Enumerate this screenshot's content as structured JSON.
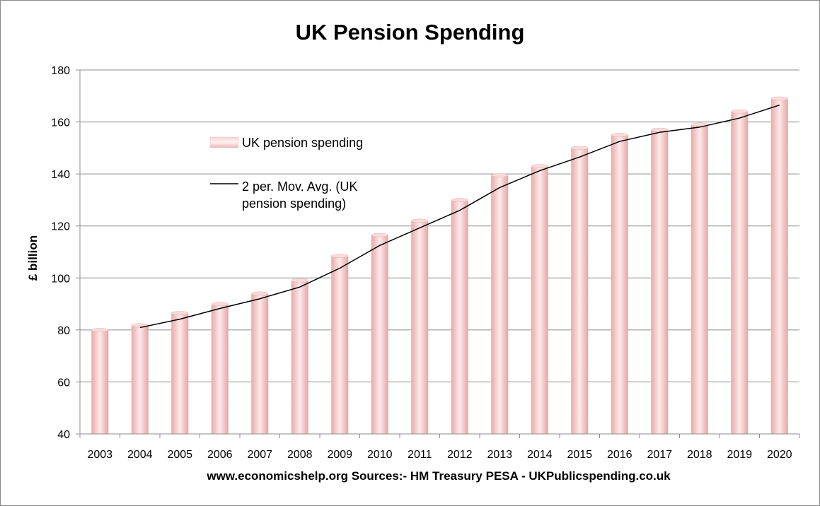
{
  "chart_data": {
    "type": "bar",
    "title": "UK Pension Spending",
    "xlabel": "www.economicshelp.org Sources:- HM Treasury PESA - UKPublicspending.co.uk",
    "ylabel": "£ billion",
    "ylim": [
      40,
      180
    ],
    "yticks": [
      40,
      60,
      80,
      100,
      120,
      140,
      160,
      180
    ],
    "categories": [
      "2003",
      "2004",
      "2005",
      "2006",
      "2007",
      "2008",
      "2009",
      "2010",
      "2011",
      "2012",
      "2013",
      "2014",
      "2015",
      "2016",
      "2017",
      "2018",
      "2019",
      "2020"
    ],
    "series": [
      {
        "name": "UK pension spending",
        "kind": "bar",
        "color": "#f4c4c4",
        "values": [
          80,
          81.8,
          86.5,
          90,
          94,
          99,
          108.5,
          116.5,
          122,
          130,
          139.5,
          143,
          150,
          155,
          157,
          159,
          164,
          169
        ]
      },
      {
        "name": "2 per. Mov. Avg. (UK pension spending)",
        "kind": "line",
        "color": "#000000",
        "values": [
          null,
          80.9,
          84.15,
          88.25,
          92,
          96.5,
          103.75,
          112.5,
          119.25,
          126,
          134.75,
          141.25,
          146.5,
          152.5,
          156,
          158,
          161.5,
          166.5
        ]
      }
    ],
    "grid": true,
    "legend_position": "upper-left inside plot"
  }
}
